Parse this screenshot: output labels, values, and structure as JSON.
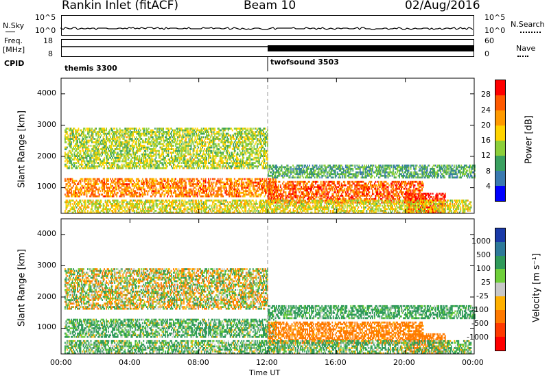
{
  "header": {
    "site": "Rankin Inlet (fitACF)",
    "beam": "Beam 10",
    "date": "02/Aug/2016"
  },
  "aux_panels": {
    "nsky_label": "N.Sky",
    "nsky_ticks": [
      "10^5",
      "10^0"
    ],
    "nsearch_label": "N.Search",
    "nsearch_ticks": [
      "10^5",
      "10^0"
    ],
    "freq_label_1": "Freq.",
    "freq_label_2": "[MHz]",
    "freq_ticks": [
      "18",
      "8"
    ],
    "nave_label": "Nave",
    "nave_ticks": [
      "60",
      "0"
    ],
    "cpid_label": "CPID",
    "cpid_1": "themis 3300",
    "cpid_2": "twofsound 3503"
  },
  "power_panel": {
    "ylabel": "Slant Range [km]",
    "yticks": [
      "4000",
      "3000",
      "2000",
      "1000"
    ],
    "cbar_label": "Power [dB]",
    "cbar_ticks": [
      "28",
      "24",
      "20",
      "16",
      "12",
      "8",
      "4"
    ],
    "cbar_colors": [
      "#ff0000",
      "#ff5a00",
      "#ff9a00",
      "#ffd400",
      "#8ccf3a",
      "#3aa060",
      "#3a7ab0",
      "#0000ff"
    ]
  },
  "velocity_panel": {
    "ylabel": "Slant Range [km]",
    "yticks": [
      "4000",
      "3000",
      "2000",
      "1000"
    ],
    "cbar_label": "Velocity [m s⁻¹]",
    "cbar_ticks": [
      "1000",
      "500",
      "100",
      "25",
      "-25",
      "-100",
      "-500",
      "-1000"
    ],
    "cbar_colors": [
      "#1a3aa8",
      "#2e7a9a",
      "#2f9a5a",
      "#6fcf3a",
      "#c8c8c8",
      "#ffb000",
      "#ff7a00",
      "#ff3a00",
      "#ff0000"
    ]
  },
  "xaxis": {
    "label": "Time UT",
    "ticks": [
      "00:00",
      "04:00",
      "08:00",
      "12:00",
      "16:00",
      "20:00",
      "00:00"
    ]
  },
  "chart_data": [
    {
      "type": "heatmap",
      "title": "Power [dB]",
      "xlabel": "Time UT",
      "ylabel": "Slant Range [km]",
      "xlim": [
        "00:00",
        "24:00"
      ],
      "ylim": [
        180,
        4500
      ],
      "zlim": [
        0,
        30
      ],
      "bands": [
        {
          "t_start": 0.2,
          "t_end": 12.5,
          "range_min": 700,
          "range_max": 1300,
          "typical_db": 22
        },
        {
          "t_start": 12.0,
          "t_end": 21.0,
          "range_min": 500,
          "range_max": 1200,
          "typical_db": 24
        },
        {
          "t_start": 20.0,
          "t_end": 22.3,
          "range_min": 180,
          "range_max": 800,
          "typical_db": 28
        },
        {
          "t_start": 0.2,
          "t_end": 12.0,
          "range_min": 1600,
          "range_max": 2900,
          "typical_db": 14
        },
        {
          "t_start": 12.0,
          "t_end": 24.0,
          "range_min": 1300,
          "range_max": 1700,
          "typical_db": 10
        },
        {
          "t_start": 0.2,
          "t_end": 23.8,
          "range_min": 180,
          "range_max": 600,
          "typical_db": 16
        }
      ]
    },
    {
      "type": "heatmap",
      "title": "Velocity [m s⁻¹]",
      "xlabel": "Time UT",
      "ylabel": "Slant Range [km]",
      "xlim": [
        "00:00",
        "24:00"
      ],
      "ylim": [
        180,
        4500
      ],
      "zlim": [
        -1000,
        1000
      ],
      "bands": [
        {
          "t_start": 0.2,
          "t_end": 12.0,
          "range_min": 1600,
          "range_max": 2900,
          "typical_ms": 0
        },
        {
          "t_start": 0.2,
          "t_end": 12.5,
          "range_min": 700,
          "range_max": 1300,
          "typical_ms": 150
        },
        {
          "t_start": 12.0,
          "t_end": 21.0,
          "range_min": 500,
          "range_max": 1200,
          "typical_ms": -250
        },
        {
          "t_start": 20.0,
          "t_end": 22.3,
          "range_min": 180,
          "range_max": 800,
          "typical_ms": -300
        },
        {
          "t_start": 12.0,
          "t_end": 24.0,
          "range_min": 1300,
          "range_max": 1700,
          "typical_ms": 200
        },
        {
          "t_start": 0.2,
          "t_end": 23.8,
          "range_min": 180,
          "range_max": 600,
          "typical_ms": 120
        }
      ]
    }
  ]
}
